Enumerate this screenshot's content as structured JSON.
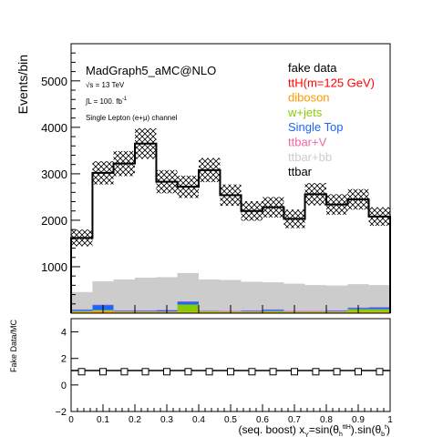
{
  "chart_data": [
    {
      "type": "bar",
      "ylabel": "Events/bin",
      "ylim": [
        0,
        5800
      ],
      "xlim": [
        0,
        1
      ],
      "y_ticks": [
        1000,
        2000,
        3000,
        4000,
        5000
      ],
      "y_tick_labels": [
        "1000",
        "2000",
        "3000",
        "4000",
        "5000"
      ],
      "annotations": {
        "generator": "MadGraph5_aMC@NLO",
        "energy": "√s = 13 TeV",
        "lumi": "∫L = 100. fb",
        "lumi_sup": "-1",
        "channel": "Single Lepton (e+μ) channel"
      },
      "legend": {
        "placement": "top-right",
        "entries": [
          {
            "label": "fake data",
            "color": "#000000"
          },
          {
            "label": "ttH(m=125 GeV)",
            "color": "#ff0000"
          },
          {
            "label": "diboson",
            "color": "#ff9900"
          },
          {
            "label": "w+jets",
            "color": "#88cc00"
          },
          {
            "label": "Single Top",
            "color": "#1a66ff"
          },
          {
            "label": "ttbar+V",
            "color": "#ee66aa"
          },
          {
            "label": "ttbar+bb",
            "color": "#cccccc"
          },
          {
            "label": "ttbar",
            "color": "#000000"
          }
        ]
      },
      "bin_edges": [
        0,
        0.067,
        0.133,
        0.2,
        0.267,
        0.333,
        0.4,
        0.467,
        0.533,
        0.6,
        0.667,
        0.733,
        0.8,
        0.867,
        0.933,
        1.0
      ],
      "series": [
        {
          "name": "ttbar",
          "values": [
            1620,
            3020,
            3220,
            3650,
            2830,
            2720,
            3080,
            2540,
            2200,
            2280,
            2030,
            2560,
            2340,
            2450,
            2080
          ]
        },
        {
          "name": "ttbar+bb",
          "values": [
            370,
            500,
            660,
            700,
            700,
            610,
            660,
            660,
            610,
            580,
            580,
            550,
            530,
            500,
            470
          ]
        },
        {
          "name": "ttbar+V",
          "values": [
            10,
            10,
            10,
            10,
            10,
            10,
            10,
            10,
            10,
            10,
            10,
            10,
            10,
            10,
            10
          ]
        },
        {
          "name": "Single Top",
          "values": [
            30,
            110,
            20,
            20,
            30,
            60,
            10,
            10,
            20,
            30,
            10,
            10,
            20,
            30,
            40
          ]
        },
        {
          "name": "w+jets",
          "values": [
            20,
            20,
            10,
            10,
            10,
            160,
            20,
            10,
            10,
            20,
            10,
            10,
            10,
            60,
            60
          ]
        },
        {
          "name": "diboson",
          "values": [
            20,
            40,
            20,
            20,
            20,
            20,
            20,
            20,
            20,
            20,
            20,
            20,
            20,
            20,
            20
          ]
        },
        {
          "name": "ttH(m=125 GeV)",
          "values": [
            5,
            5,
            5,
            5,
            5,
            5,
            5,
            5,
            5,
            5,
            5,
            5,
            5,
            5,
            5
          ]
        }
      ],
      "uncertainty_halfwidth": [
        180,
        250,
        270,
        330,
        250,
        240,
        260,
        230,
        210,
        220,
        200,
        240,
        220,
        220,
        200
      ]
    },
    {
      "type": "scatter",
      "ylabel": "Fake Data/MC",
      "xlabel": "(seq. boost) x",
      "xlabel_sub": "Y",
      "xlabel_formula": "=sin(θ",
      "xlabel_sub2": "h",
      "xlabel_sup2": "ttH",
      "xlabel_formula2": ").sin(θ",
      "xlabel_sub3": "b",
      "xlabel_sup3": "t",
      "xlabel_end": ")",
      "ylim": [
        -2,
        5
      ],
      "y_ticks": [
        -2,
        0,
        2,
        4
      ],
      "y_tick_labels": [
        "−2",
        "0",
        "2",
        "4"
      ],
      "x_ticks": [
        0,
        0.1,
        0.2,
        0.3,
        0.4,
        0.5,
        0.6,
        0.7,
        0.8,
        0.9,
        1
      ],
      "x_tick_labels": [
        "0",
        "0.1",
        "0.2",
        "0.3",
        "0.4",
        "0.5",
        "0.6",
        "0.7",
        "0.8",
        "0.9",
        "1"
      ],
      "x": [
        0.033,
        0.1,
        0.167,
        0.233,
        0.3,
        0.367,
        0.433,
        0.5,
        0.567,
        0.633,
        0.7,
        0.767,
        0.833,
        0.9,
        0.967
      ],
      "y": [
        1,
        1,
        1,
        1,
        1,
        1,
        1,
        1,
        1,
        1,
        1,
        1,
        1,
        1,
        1
      ]
    }
  ]
}
